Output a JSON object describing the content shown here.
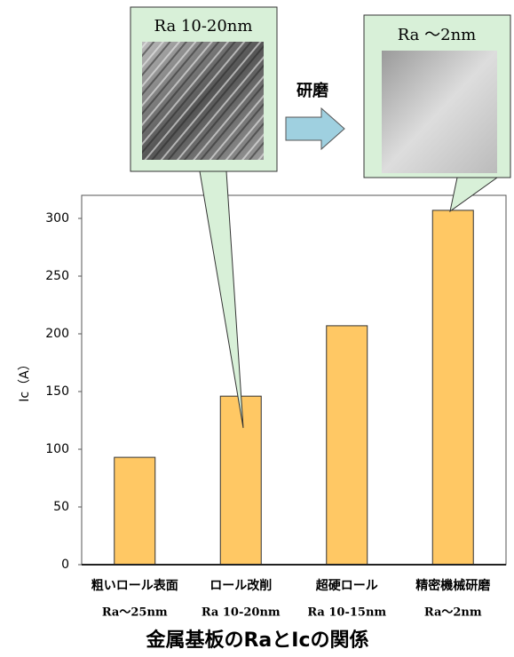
{
  "chart_data": {
    "type": "bar",
    "title": "金属基板のRaとIcの関係",
    "y_label": "Ic（A）",
    "categories": [
      "粗いロール表面",
      "ロール改削",
      "超硬ロール",
      "精密機械研磨"
    ],
    "sublabels": [
      "Ra～25nm",
      "Ra 10-20nm",
      "Ra 10-15nm",
      "Ra～2nm"
    ],
    "values": [
      93,
      146,
      207,
      307
    ],
    "color": "#ffc864",
    "ylim": [
      0,
      320
    ],
    "yticks": [
      0,
      50,
      100,
      150,
      200,
      250,
      300
    ],
    "callouts": [
      {
        "label": "Ra 10-20nm"
      },
      {
        "label": "Ra ～2nm"
      }
    ],
    "arrow_label": "研磨"
  }
}
